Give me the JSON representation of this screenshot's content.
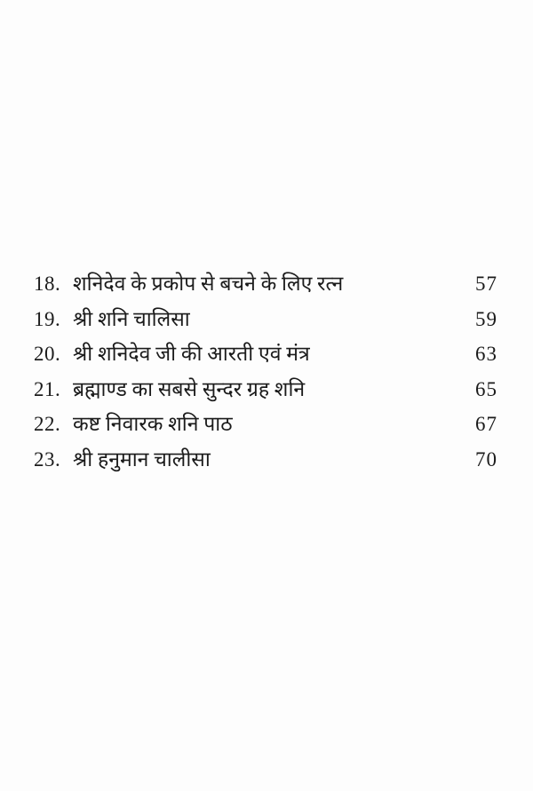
{
  "page": {
    "background_color": "#fdfdfd",
    "text_color": "#1b1b1b"
  },
  "toc": {
    "entries": [
      {
        "number": "18.",
        "title": "शनिदेव के प्रकोप से बचने के लिए रत्न",
        "page": "57"
      },
      {
        "number": "19.",
        "title": "श्री शनि चालिसा",
        "page": "59"
      },
      {
        "number": "20.",
        "title": "श्री शनिदेव जी की आरती एवं मंत्र",
        "page": "63"
      },
      {
        "number": "21.",
        "title": "ब्रह्माण्ड का सबसे सुन्दर ग्रह शनि",
        "page": "65"
      },
      {
        "number": "22.",
        "title": "कष्ट निवारक शनि पाठ",
        "page": "67"
      },
      {
        "number": "23.",
        "title": "श्री हनुमान चालीसा",
        "page": "70"
      }
    ]
  }
}
